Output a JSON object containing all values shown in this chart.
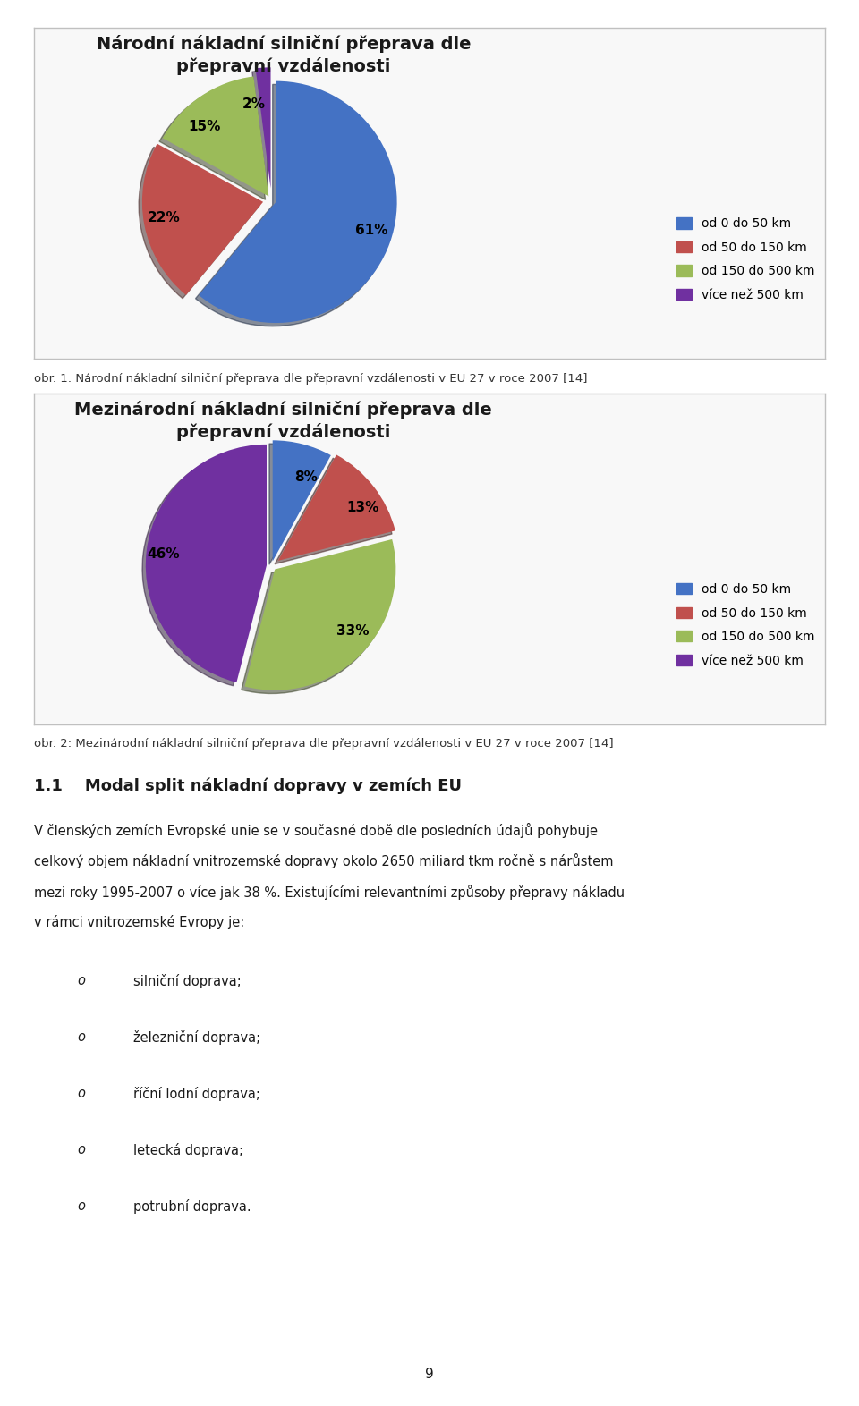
{
  "chart1_title": "Národní nákladní silniční přeprava dle\npřepravní vzdálenosti",
  "chart1_values": [
    61,
    22,
    15,
    2
  ],
  "chart1_labels": [
    "61%",
    "22%",
    "15%",
    "2%"
  ],
  "chart1_colors": [
    "#4472C4",
    "#C0504D",
    "#9BBB59",
    "#7030A0"
  ],
  "chart1_legend": [
    "od 0 do 50 km",
    "od 50 do 150 km",
    "od 150 do 500 km",
    "více než 500 km"
  ],
  "chart1_startangle": 90,
  "chart1_explode": [
    0.04,
    0.07,
    0.04,
    0.1
  ],
  "caption1": "obr. 1: Národní nákladní silniční přeprava dle přepravní vzdálenosti v EU 27 v roce 2007 [14]",
  "chart2_title": "Mezinárodní nákladní silniční přeprava dle\npřepravní vzdálenosti",
  "chart2_values": [
    8,
    13,
    33,
    46
  ],
  "chart2_labels": [
    "8%",
    "13%",
    "33%",
    "46%"
  ],
  "chart2_colors": [
    "#4472C4",
    "#C0504D",
    "#9BBB59",
    "#7030A0"
  ],
  "chart2_legend": [
    "od 0 do 50 km",
    "od 50 do 150 km",
    "od 150 do 500 km",
    "více než 500 km"
  ],
  "chart2_startangle": 90,
  "chart2_explode": [
    0.04,
    0.07,
    0.04,
    0.04
  ],
  "caption2": "obr. 2: Mezinárodní nákladní silniční přeprava dle přepravní vzdálenosti v EU 27 v roce 2007 [14]",
  "section_number": "1.1",
  "section_title": "Modal split nákladní dopravy v zemích EU",
  "body_lines": [
    "V členských zemích Evropské unie se v současné době dle posledních údajů pohybuje",
    "celkový objem nákladní vnitrozemské dopravy okolo 2650 miliard tkm ročně s nárůstem",
    "mezi roky 1995-2007 o více jak 38 %. Existujícími relevantními způsoby přepravy nákladu",
    "v rámci vnitrozemské Evropy je:"
  ],
  "bullet_items": [
    "silniční doprava;",
    "železniční doprava;",
    "říční lodní doprava;",
    "letecká doprava;",
    "potrubní doprava."
  ],
  "page_number": "9",
  "background_color": "#ffffff",
  "box_border_color": "#c0c0c0",
  "chart_bg_color": "#f8f8f8",
  "text_color": "#1a1a1a",
  "caption_color": "#333333"
}
